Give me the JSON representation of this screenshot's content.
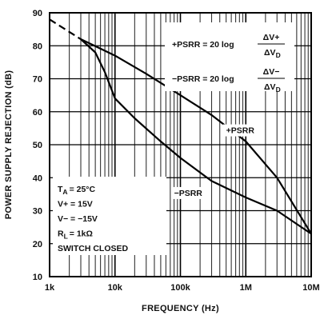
{
  "chart_data": {
    "type": "line",
    "xlabel": "FREQUENCY (Hz)",
    "ylabel": "POWER SUPPLY REJECTION (dB)",
    "xscale": "log",
    "xlim": [
      1000,
      10000000
    ],
    "ylim": [
      10,
      90
    ],
    "grid": true,
    "x_tick_values": [
      1000,
      10000,
      100000,
      1000000,
      10000000
    ],
    "x_tick_labels": [
      "1k",
      "10k",
      "100k",
      "1M",
      "10M"
    ],
    "y_ticks": [
      10,
      20,
      30,
      40,
      50,
      60,
      70,
      80,
      90
    ],
    "series": [
      {
        "name": "+PSRR",
        "x": [
          1000,
          3000,
          10000,
          30000,
          100000,
          300000,
          1000000,
          3000000,
          10000000
        ],
        "y": [
          88,
          82,
          77,
          71.5,
          65,
          59,
          51,
          40,
          23
        ]
      },
      {
        "name": "-PSRR",
        "x": [
          1000,
          3000,
          5000,
          7000,
          10000,
          20000,
          50000,
          100000,
          300000,
          1000000,
          3000000,
          10000000
        ],
        "y": [
          88,
          82,
          78,
          72,
          64,
          58,
          51,
          46,
          39,
          34,
          30,
          23
        ]
      }
    ],
    "low_frequency_segment": {
      "style": "dashed",
      "x": [
        1000,
        3000
      ],
      "y": [
        88,
        82
      ]
    },
    "formulas": [
      {
        "lhs": "+PSRR = 20 log",
        "num": "ΔV+",
        "den": "ΔV",
        "den_sub": "D"
      },
      {
        "lhs": "−PSRR = 20 log",
        "num": "ΔV−",
        "den": "ΔV",
        "den_sub": "D"
      }
    ],
    "series_labels": [
      {
        "text": "+PSRR",
        "x": 500000,
        "y": 53.5
      },
      {
        "text": "−PSRR",
        "x": 80000,
        "y": 34.5
      }
    ],
    "conditions": [
      {
        "main": "T",
        "sub": "A",
        "rest": "= 25°C"
      },
      {
        "main": "V+ = 15V",
        "sub": "",
        "rest": ""
      },
      {
        "main": "V− = −15V",
        "sub": "",
        "rest": ""
      },
      {
        "main": "R",
        "sub": "L",
        "rest": "= 1kΩ"
      },
      {
        "main": "SWITCH CLOSED",
        "sub": "",
        "rest": ""
      }
    ]
  }
}
